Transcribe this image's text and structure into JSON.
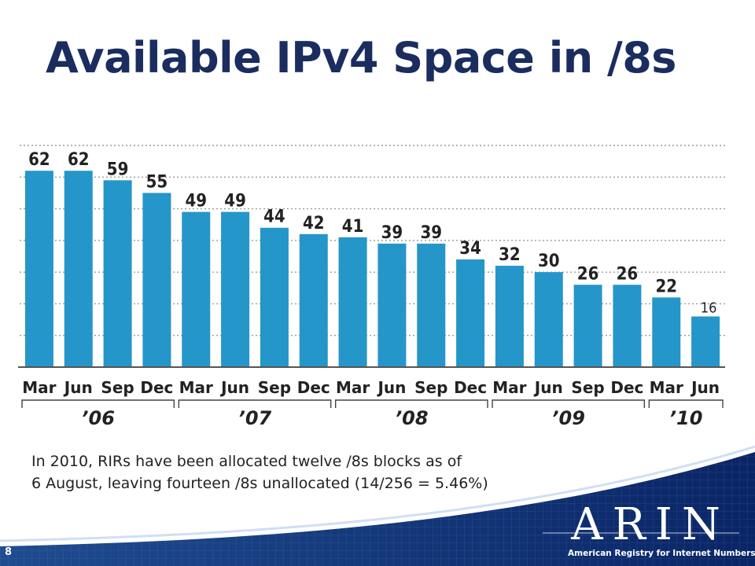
{
  "title": "Available IPv4 Space in /8s",
  "note_lines": [
    "In 2010, RIRs have been allocated twelve /8s blocks as of",
    "6 August, leaving fourteen /8s unallocated (14/256 = 5.46%)"
  ],
  "page_number": "8",
  "logo": {
    "name": "ARIN",
    "subtitle": "American Registry for Internet Numbers"
  },
  "colors": {
    "bar": "#2596c9",
    "title": "#1a2d5e",
    "footer": "#0c2a66"
  },
  "chart_data": {
    "type": "bar",
    "title": "",
    "xlabel": "",
    "ylabel": "",
    "categories": [
      "Mar",
      "Jun",
      "Sep",
      "Dec",
      "Mar",
      "Jun",
      "Sep",
      "Dec",
      "Mar",
      "Jun",
      "Sep",
      "Dec",
      "Mar",
      "Jun",
      "Sep",
      "Dec",
      "Mar",
      "Jun"
    ],
    "values": [
      62,
      62,
      59,
      55,
      49,
      49,
      44,
      42,
      41,
      39,
      39,
      34,
      32,
      30,
      26,
      26,
      22,
      16
    ],
    "groups": [
      {
        "label": "’06",
        "start": 0,
        "end": 3
      },
      {
        "label": "’07",
        "start": 4,
        "end": 7
      },
      {
        "label": "’08",
        "start": 8,
        "end": 11
      },
      {
        "label": "’09",
        "start": 12,
        "end": 15
      },
      {
        "label": "’10",
        "start": 16,
        "end": 17
      }
    ],
    "ylim": [
      0,
      70
    ],
    "grid": true,
    "grid_step": 10,
    "legend": "none"
  }
}
